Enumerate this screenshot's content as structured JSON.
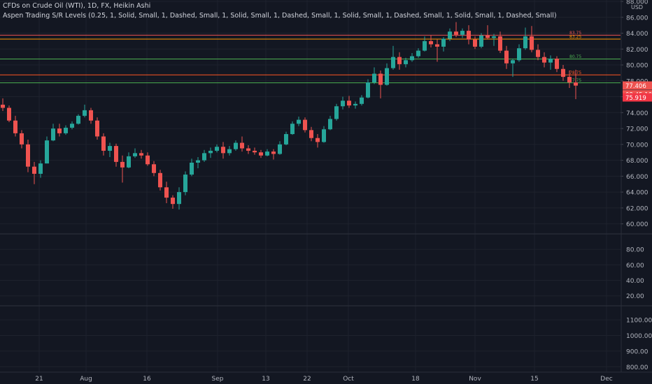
{
  "header": {
    "title": "CFDs on Crude Oil (WTI), 1D, FX, Heikin Ashi",
    "indicator": "Aspen Trading S/R Levels (0.25, 1, Solid, Small, 1, Dashed, Small, 1, Solid, Small, 1, Dashed, Small, 1, Solid, Small, 1, Dashed, Small, 1, Solid, Small, 1, Dashed, Small)"
  },
  "colors": {
    "background": "#131722",
    "grid": "#1e222d",
    "text": "#b2b5be",
    "up": "#26a69a",
    "down": "#ef5350",
    "separator": "#2a2e39"
  },
  "chart_data": [
    {
      "type": "candlestick",
      "style": "Heikin Ashi",
      "symbol": "CFDs on Crude Oil (WTI)",
      "interval": "1D",
      "ylim": [
        59,
        88
      ],
      "yunit": "USD",
      "yticks": [
        "60.000",
        "62.000",
        "64.000",
        "66.000",
        "68.000",
        "70.000",
        "72.000",
        "74.000",
        "76.000",
        "78.000",
        "80.000",
        "82.000",
        "84.000",
        "86.000",
        "88.000"
      ],
      "xticks": [
        "21",
        "Aug",
        "16",
        "Sep",
        "13",
        "22",
        "Oct",
        "18",
        "Nov",
        "15",
        "Dec"
      ],
      "grid": true,
      "price_labels": [
        {
          "text": "77.406",
          "value": 77.406,
          "color": "#ef5350"
        },
        {
          "text": "08:45:10",
          "value": 76.3,
          "color": "#ef5350"
        },
        {
          "text": "75.919",
          "value": 75.919,
          "color": "#f23645"
        }
      ],
      "levels": [
        {
          "value": 83.75,
          "label": "83.75",
          "color": "#ef5350"
        },
        {
          "value": 83.25,
          "label": "83.25",
          "color": "#ff9800"
        },
        {
          "value": 80.75,
          "label": "80.75",
          "color": "#4caf50"
        },
        {
          "value": 78.75,
          "label": "78.75",
          "color": "#ff5722"
        },
        {
          "value": 77.75,
          "label": "77.75",
          "color": "#4caf50"
        }
      ],
      "candles": [
        {
          "o": 75.0,
          "h": 75.8,
          "l": 74.2,
          "c": 74.6
        },
        {
          "o": 74.6,
          "h": 74.9,
          "l": 72.8,
          "c": 73.0
        },
        {
          "o": 73.0,
          "h": 73.6,
          "l": 71.0,
          "c": 71.4
        },
        {
          "o": 71.4,
          "h": 71.8,
          "l": 69.5,
          "c": 70.0
        },
        {
          "o": 70.0,
          "h": 70.6,
          "l": 66.5,
          "c": 67.2
        },
        {
          "o": 67.2,
          "h": 67.8,
          "l": 65.0,
          "c": 66.3
        },
        {
          "o": 66.3,
          "h": 68.0,
          "l": 65.8,
          "c": 67.6
        },
        {
          "o": 67.6,
          "h": 71.0,
          "l": 67.6,
          "c": 70.5
        },
        {
          "o": 70.5,
          "h": 72.6,
          "l": 70.4,
          "c": 72.0
        },
        {
          "o": 72.0,
          "h": 72.6,
          "l": 71.0,
          "c": 71.4
        },
        {
          "o": 71.4,
          "h": 72.4,
          "l": 71.2,
          "c": 72.1
        },
        {
          "o": 72.1,
          "h": 72.9,
          "l": 71.9,
          "c": 72.6
        },
        {
          "o": 72.6,
          "h": 73.8,
          "l": 72.5,
          "c": 73.6
        },
        {
          "o": 73.6,
          "h": 75.0,
          "l": 73.4,
          "c": 74.3
        },
        {
          "o": 74.3,
          "h": 74.6,
          "l": 72.6,
          "c": 73.0
        },
        {
          "o": 73.0,
          "h": 73.4,
          "l": 70.6,
          "c": 71.0
        },
        {
          "o": 71.0,
          "h": 71.4,
          "l": 68.6,
          "c": 69.2
        },
        {
          "o": 69.2,
          "h": 70.2,
          "l": 68.4,
          "c": 69.8
        },
        {
          "o": 69.8,
          "h": 70.1,
          "l": 67.2,
          "c": 67.8
        },
        {
          "o": 67.8,
          "h": 68.6,
          "l": 65.2,
          "c": 67.1
        },
        {
          "o": 67.1,
          "h": 69.0,
          "l": 67.0,
          "c": 68.5
        },
        {
          "o": 68.5,
          "h": 69.5,
          "l": 68.3,
          "c": 68.9
        },
        {
          "o": 68.9,
          "h": 69.3,
          "l": 68.2,
          "c": 68.6
        },
        {
          "o": 68.6,
          "h": 69.0,
          "l": 67.3,
          "c": 67.5
        },
        {
          "o": 67.5,
          "h": 67.9,
          "l": 66.0,
          "c": 66.4
        },
        {
          "o": 66.4,
          "h": 66.8,
          "l": 64.2,
          "c": 64.6
        },
        {
          "o": 64.6,
          "h": 65.3,
          "l": 62.6,
          "c": 63.3
        },
        {
          "o": 63.3,
          "h": 63.6,
          "l": 61.9,
          "c": 62.5
        },
        {
          "o": 62.5,
          "h": 64.6,
          "l": 61.8,
          "c": 64.0
        },
        {
          "o": 64.0,
          "h": 66.6,
          "l": 63.6,
          "c": 66.2
        },
        {
          "o": 66.2,
          "h": 68.2,
          "l": 66.0,
          "c": 67.7
        },
        {
          "o": 67.7,
          "h": 68.4,
          "l": 67.0,
          "c": 68.0
        },
        {
          "o": 68.0,
          "h": 69.3,
          "l": 67.8,
          "c": 68.9
        },
        {
          "o": 68.9,
          "h": 69.6,
          "l": 68.3,
          "c": 69.2
        },
        {
          "o": 69.2,
          "h": 70.0,
          "l": 69.0,
          "c": 69.7
        },
        {
          "o": 69.7,
          "h": 70.3,
          "l": 68.2,
          "c": 68.9
        },
        {
          "o": 68.9,
          "h": 69.8,
          "l": 68.6,
          "c": 69.4
        },
        {
          "o": 69.4,
          "h": 70.5,
          "l": 69.2,
          "c": 70.2
        },
        {
          "o": 70.2,
          "h": 71.0,
          "l": 69.1,
          "c": 69.5
        },
        {
          "o": 69.5,
          "h": 69.9,
          "l": 68.8,
          "c": 69.2
        },
        {
          "o": 69.2,
          "h": 69.6,
          "l": 68.7,
          "c": 69.0
        },
        {
          "o": 69.0,
          "h": 69.3,
          "l": 68.3,
          "c": 68.6
        },
        {
          "o": 68.6,
          "h": 69.4,
          "l": 68.5,
          "c": 69.1
        },
        {
          "o": 69.1,
          "h": 69.4,
          "l": 68.1,
          "c": 68.8
        },
        {
          "o": 68.8,
          "h": 70.4,
          "l": 68.7,
          "c": 70.0
        },
        {
          "o": 70.0,
          "h": 71.6,
          "l": 69.9,
          "c": 71.3
        },
        {
          "o": 71.3,
          "h": 72.9,
          "l": 71.2,
          "c": 72.6
        },
        {
          "o": 72.6,
          "h": 73.5,
          "l": 72.3,
          "c": 73.1
        },
        {
          "o": 73.1,
          "h": 73.4,
          "l": 71.5,
          "c": 71.8
        },
        {
          "o": 71.8,
          "h": 72.2,
          "l": 70.4,
          "c": 70.8
        },
        {
          "o": 70.8,
          "h": 71.3,
          "l": 69.6,
          "c": 70.3
        },
        {
          "o": 70.3,
          "h": 72.3,
          "l": 70.2,
          "c": 71.9
        },
        {
          "o": 71.9,
          "h": 73.6,
          "l": 71.8,
          "c": 73.2
        },
        {
          "o": 73.2,
          "h": 75.1,
          "l": 73.0,
          "c": 74.8
        },
        {
          "o": 74.8,
          "h": 76.0,
          "l": 74.4,
          "c": 75.5
        },
        {
          "o": 75.5,
          "h": 76.1,
          "l": 74.6,
          "c": 74.9
        },
        {
          "o": 74.9,
          "h": 75.4,
          "l": 74.5,
          "c": 75.1
        },
        {
          "o": 75.1,
          "h": 76.2,
          "l": 74.9,
          "c": 75.9
        },
        {
          "o": 75.9,
          "h": 78.2,
          "l": 75.8,
          "c": 77.8
        },
        {
          "o": 77.8,
          "h": 79.7,
          "l": 77.6,
          "c": 78.9
        },
        {
          "o": 78.9,
          "h": 79.3,
          "l": 75.8,
          "c": 77.5
        },
        {
          "o": 77.5,
          "h": 80.2,
          "l": 77.4,
          "c": 79.6
        },
        {
          "o": 79.6,
          "h": 82.4,
          "l": 79.4,
          "c": 81.0
        },
        {
          "o": 81.0,
          "h": 81.6,
          "l": 79.4,
          "c": 80.1
        },
        {
          "o": 80.1,
          "h": 80.9,
          "l": 79.7,
          "c": 80.6
        },
        {
          "o": 80.6,
          "h": 81.5,
          "l": 80.4,
          "c": 81.1
        },
        {
          "o": 81.1,
          "h": 82.1,
          "l": 80.9,
          "c": 81.8
        },
        {
          "o": 81.8,
          "h": 83.6,
          "l": 81.7,
          "c": 83.0
        },
        {
          "o": 83.0,
          "h": 83.7,
          "l": 82.2,
          "c": 82.6
        },
        {
          "o": 82.6,
          "h": 83.2,
          "l": 80.4,
          "c": 82.3
        },
        {
          "o": 82.3,
          "h": 83.5,
          "l": 81.7,
          "c": 83.3
        },
        {
          "o": 83.3,
          "h": 84.6,
          "l": 83.0,
          "c": 84.2
        },
        {
          "o": 84.2,
          "h": 85.4,
          "l": 83.5,
          "c": 83.8
        },
        {
          "o": 83.8,
          "h": 84.6,
          "l": 83.4,
          "c": 84.3
        },
        {
          "o": 84.3,
          "h": 85.0,
          "l": 82.6,
          "c": 83.2
        },
        {
          "o": 83.2,
          "h": 83.6,
          "l": 82.0,
          "c": 82.3
        },
        {
          "o": 82.3,
          "h": 84.0,
          "l": 82.1,
          "c": 83.7
        },
        {
          "o": 83.7,
          "h": 85.0,
          "l": 83.2,
          "c": 83.4
        },
        {
          "o": 83.4,
          "h": 83.9,
          "l": 82.4,
          "c": 83.6
        },
        {
          "o": 83.6,
          "h": 84.2,
          "l": 81.5,
          "c": 81.8
        },
        {
          "o": 81.8,
          "h": 82.4,
          "l": 79.5,
          "c": 80.2
        },
        {
          "o": 80.2,
          "h": 80.8,
          "l": 78.5,
          "c": 80.6
        },
        {
          "o": 80.6,
          "h": 82.6,
          "l": 80.4,
          "c": 82.1
        },
        {
          "o": 82.1,
          "h": 84.7,
          "l": 81.9,
          "c": 83.6
        },
        {
          "o": 83.6,
          "h": 84.9,
          "l": 81.6,
          "c": 81.9
        },
        {
          "o": 81.9,
          "h": 82.6,
          "l": 80.6,
          "c": 81.0
        },
        {
          "o": 81.0,
          "h": 81.6,
          "l": 79.7,
          "c": 80.3
        },
        {
          "o": 80.3,
          "h": 81.2,
          "l": 79.4,
          "c": 80.8
        },
        {
          "o": 80.8,
          "h": 81.1,
          "l": 79.1,
          "c": 79.5
        },
        {
          "o": 79.5,
          "h": 80.0,
          "l": 78.0,
          "c": 78.5
        },
        {
          "o": 78.5,
          "h": 79.3,
          "l": 77.1,
          "c": 77.8
        },
        {
          "o": 77.8,
          "h": 79.4,
          "l": 75.7,
          "c": 77.4
        }
      ]
    },
    {
      "type": "pane",
      "name": "indicator-pane-1",
      "ylim": [
        8,
        100
      ],
      "yticks": [
        "20.00",
        "40.00",
        "60.00",
        "80.00"
      ]
    },
    {
      "type": "pane",
      "name": "indicator-pane-2",
      "ylim": [
        770,
        1190
      ],
      "yticks": [
        "800.00",
        "900.00",
        "1000.00",
        "1100.00"
      ]
    }
  ]
}
